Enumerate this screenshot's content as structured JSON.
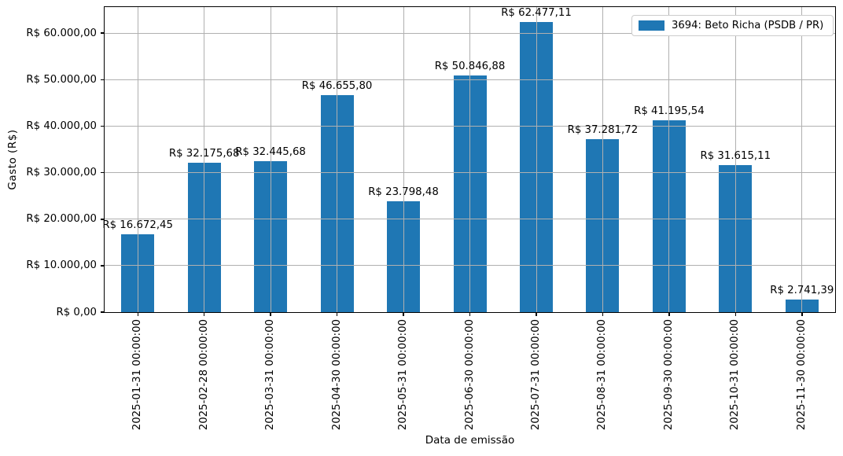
{
  "chart_data": {
    "type": "bar",
    "title": "",
    "xlabel": "Data de emissão",
    "ylabel": "Gasto (R$)",
    "categories": [
      "2025-01-31 00:00:00",
      "2025-02-28 00:00:00",
      "2025-03-31 00:00:00",
      "2025-04-30 00:00:00",
      "2025-05-31 00:00:00",
      "2025-06-30 00:00:00",
      "2025-07-31 00:00:00",
      "2025-08-31 00:00:00",
      "2025-09-30 00:00:00",
      "2025-10-31 00:00:00",
      "2025-11-30 00:00:00"
    ],
    "series": [
      {
        "name": "3694: Beto Richa (PSDB / PR)",
        "values": [
          16672.45,
          32175.68,
          32445.68,
          46655.8,
          23798.48,
          50846.88,
          62477.11,
          37281.72,
          41195.54,
          31615.11,
          2741.39
        ]
      }
    ],
    "value_labels": [
      "R$ 16.672,45",
      "R$ 32.175,68",
      "R$ 32.445,68",
      "R$ 46.655,80",
      "R$ 23.798,48",
      "R$ 50.846,88",
      "R$ 62.477,11",
      "R$ 37.281,72",
      "R$ 41.195,54",
      "R$ 31.615,11",
      "R$ 2.741,39"
    ],
    "yticks": [
      0,
      10000,
      20000,
      30000,
      40000,
      50000,
      60000
    ],
    "ytick_labels": [
      "R$ 0,00",
      "R$ 10.000,00",
      "R$ 20.000,00",
      "R$ 30.000,00",
      "R$ 40.000,00",
      "R$ 50.000,00",
      "R$ 60.000,00"
    ],
    "ylim": [
      0,
      65600
    ],
    "grid": true,
    "legend": {
      "label": "3694: Beto Richa (PSDB / PR)",
      "position": "upper right"
    },
    "colors": {
      "bar": "#1f77b4",
      "grid": "#b0b0b0",
      "spine": "#000000",
      "legend_border": "#cccccc",
      "text": "#000000"
    }
  }
}
